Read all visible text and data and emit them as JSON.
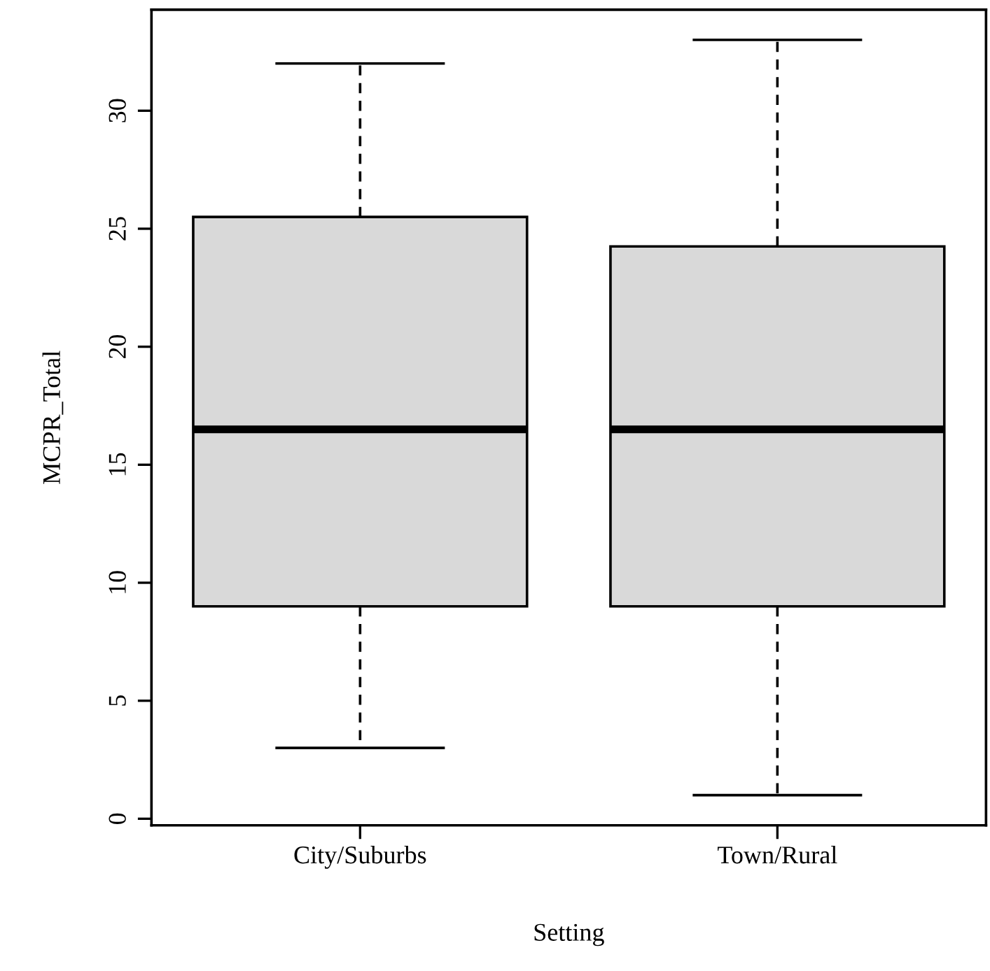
{
  "chart_data": {
    "type": "box",
    "xlabel": "Setting",
    "ylabel": "MCPR_Total",
    "categories": [
      "City/Suburbs",
      "Town/Rural"
    ],
    "color": "#d9d9d9",
    "boxes": [
      {
        "low": 3,
        "q1": 9,
        "median": 16.5,
        "q3": 25.5,
        "high": 32
      },
      {
        "low": 1,
        "q1": 9,
        "median": 16.5,
        "q3": 24.25,
        "high": 33
      }
    ],
    "ylim": [
      -0.28,
      34.28
    ],
    "yticks": [
      0,
      5,
      10,
      15,
      20,
      25,
      30
    ],
    "grid": false
  }
}
